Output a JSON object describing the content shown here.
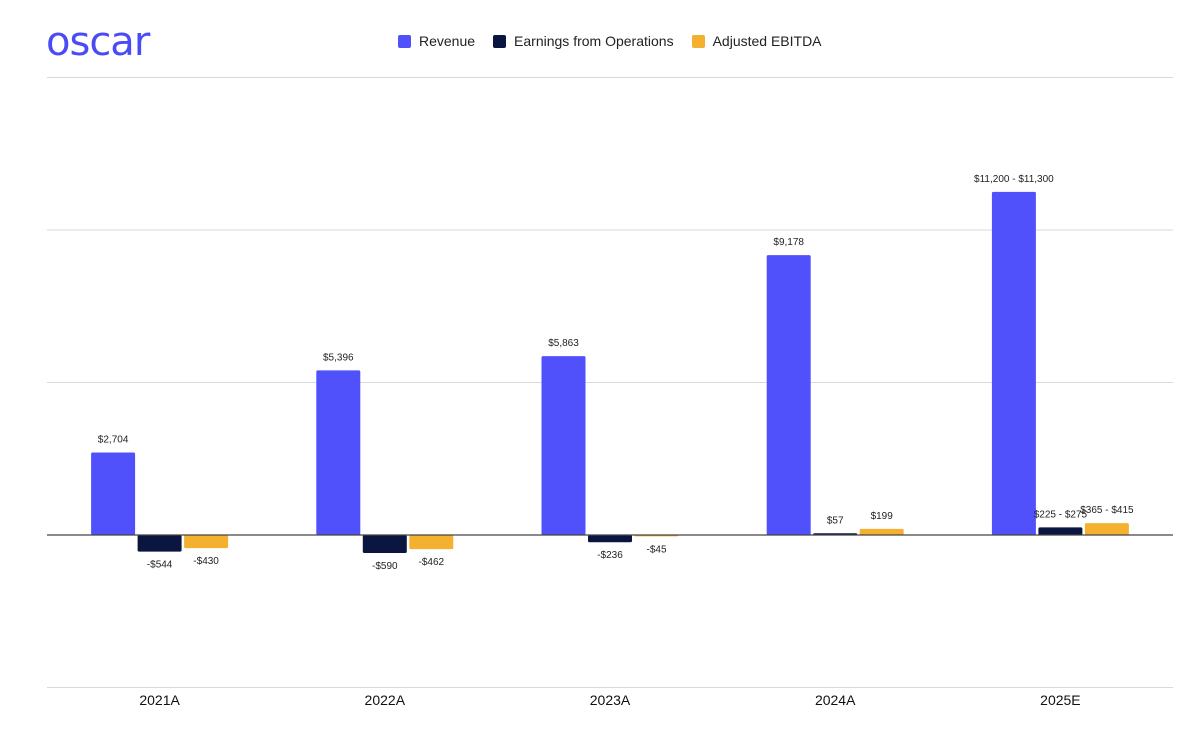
{
  "brand": {
    "logo_text": "oscar",
    "logo_color": "#4B4BF5"
  },
  "colors": {
    "revenue": "#5151FC",
    "earnings": "#0B1640",
    "ebitda": "#F4B130",
    "grid": "#d9d9d9",
    "axis": "#444444"
  },
  "chart_data": {
    "type": "bar",
    "categories": [
      "2021A",
      "2022A",
      "2023A",
      "2024A",
      "2025E"
    ],
    "series": [
      {
        "name": "Revenue",
        "color": "#5151FC",
        "values": [
          2704,
          5396,
          5863,
          9178,
          11250
        ],
        "labels": [
          "$2,704",
          "$5,396",
          "$5,863",
          "$9,178",
          "$11,200 - $11,300"
        ]
      },
      {
        "name": "Earnings from Operations",
        "color": "#0B1640",
        "values": [
          -544,
          -590,
          -236,
          57,
          250
        ],
        "labels": [
          "-$544",
          "-$590",
          "-$236",
          "$57",
          "$225 - $275"
        ]
      },
      {
        "name": "Adjusted EBITDA",
        "color": "#F4B130",
        "values": [
          -430,
          -462,
          -45,
          199,
          390
        ],
        "labels": [
          "-$430",
          "-$462",
          "-$45",
          "$199",
          "$365 - $415"
        ]
      }
    ],
    "ylim": [
      -5000,
      15000
    ],
    "grid": true,
    "legend_position": "top"
  }
}
